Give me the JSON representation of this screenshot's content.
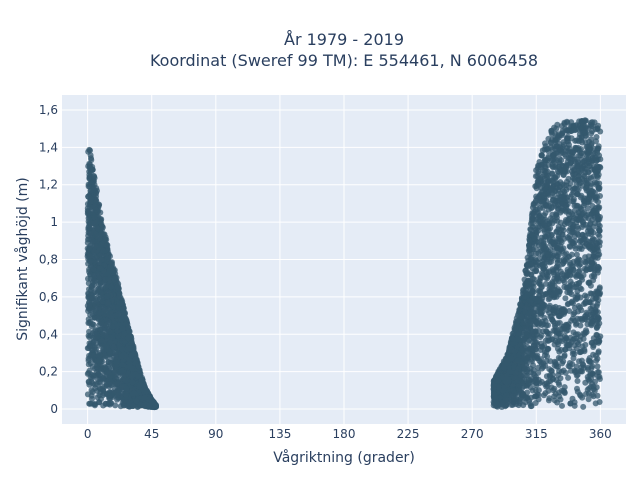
{
  "chart_data": {
    "type": "scatter",
    "title": "År 1979 - 2019",
    "subtitle": "Koordinat (Sweref 99 TM): E 554461, N 6006458",
    "xlabel": "Vågriktning (grader)",
    "ylabel": "Signifikant våghöjd (m)",
    "xlim": [
      -18,
      378
    ],
    "ylim": [
      -0.08,
      1.68
    ],
    "x_ticks": [
      0,
      45,
      90,
      135,
      180,
      225,
      270,
      315,
      360
    ],
    "x_tick_labels": [
      "0",
      "45",
      "90",
      "135",
      "180",
      "225",
      "270",
      "315",
      "360"
    ],
    "y_ticks": [
      0,
      0.2,
      0.4,
      0.6,
      0.8,
      1.0,
      1.2,
      1.4,
      1.6
    ],
    "y_tick_labels": [
      "0",
      "0,2",
      "0,4",
      "0,6",
      "0,8",
      "1",
      "1,2",
      "1,4",
      "1,6"
    ],
    "grid": true,
    "marker_color": "#34586e",
    "plot_bg": "#e5ecf6",
    "clusters": [
      {
        "x_range": [
          0,
          48
        ],
        "envelope": [
          [
            0,
            1.45
          ],
          [
            5,
            1.25
          ],
          [
            10,
            1.0
          ],
          [
            15,
            0.85
          ],
          [
            20,
            0.72
          ],
          [
            25,
            0.55
          ],
          [
            30,
            0.4
          ],
          [
            35,
            0.25
          ],
          [
            40,
            0.12
          ],
          [
            45,
            0.05
          ],
          [
            48,
            0.02
          ]
        ]
      },
      {
        "x_range": [
          285,
          360
        ],
        "envelope": [
          [
            285,
            0.15
          ],
          [
            295,
            0.3
          ],
          [
            305,
            0.6
          ],
          [
            310,
            0.9
          ],
          [
            315,
            1.3
          ],
          [
            320,
            1.4
          ],
          [
            325,
            1.5
          ],
          [
            335,
            1.55
          ],
          [
            345,
            1.55
          ],
          [
            355,
            1.55
          ],
          [
            360,
            1.5
          ]
        ]
      }
    ]
  }
}
